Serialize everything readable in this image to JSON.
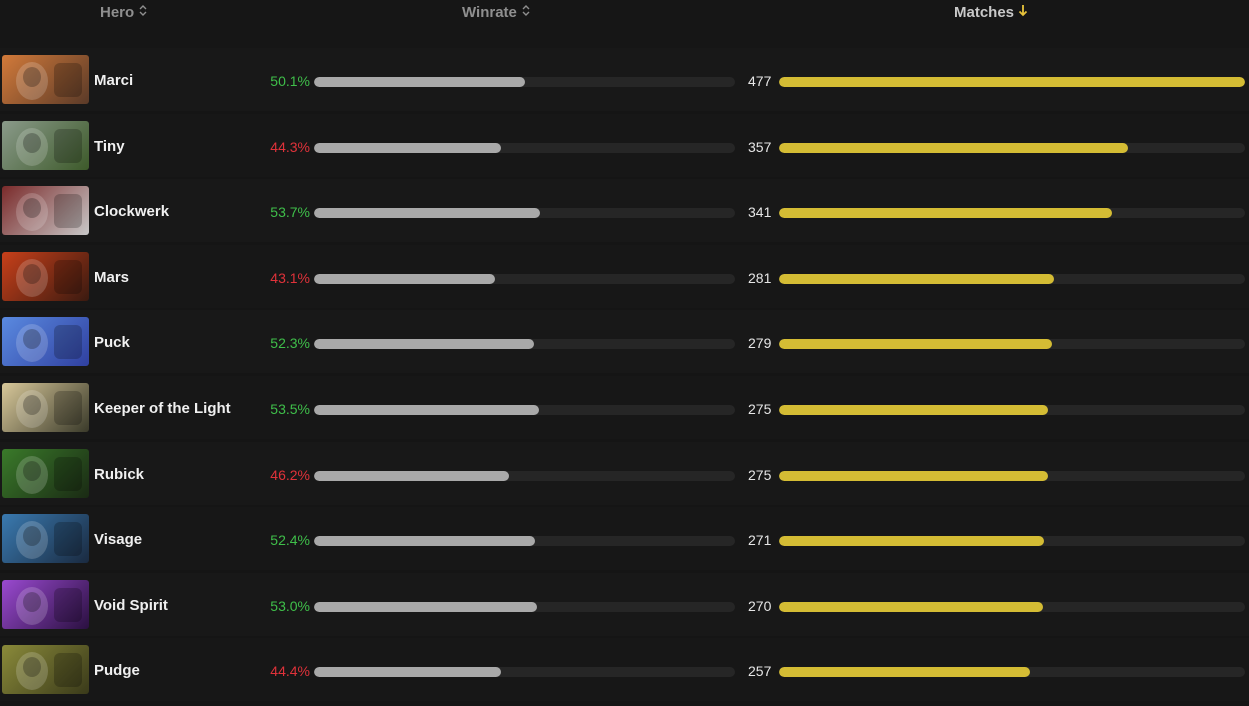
{
  "header": {
    "hero_label": "Hero",
    "winrate_label": "Winrate",
    "matches_label": "Matches",
    "hero_sort_icon": "sort-updown-icon",
    "winrate_sort_icon": "sort-updown-icon",
    "matches_sort_icon": "sort-desc-arrow-icon"
  },
  "colors": {
    "win_green": "#3fbf4a",
    "loss_red": "#e0323a",
    "winrate_bar": "#a9a9a9",
    "matches_bar": "#d4bc34"
  },
  "rows": [
    {
      "hero": "Marci",
      "winrate": "50.1%",
      "winrate_value": 50.1,
      "matches": "477",
      "matches_value": 477,
      "portrait_colors": [
        "#d27a3a",
        "#5a3a28"
      ]
    },
    {
      "hero": "Tiny",
      "winrate": "44.3%",
      "winrate_value": 44.3,
      "matches": "357",
      "matches_value": 357,
      "portrait_colors": [
        "#8a9a8a",
        "#3d5a2a"
      ]
    },
    {
      "hero": "Clockwerk",
      "winrate": "53.7%",
      "winrate_value": 53.7,
      "matches": "341",
      "matches_value": 341,
      "portrait_colors": [
        "#7a2a2a",
        "#c8c8c8"
      ]
    },
    {
      "hero": "Mars",
      "winrate": "43.1%",
      "winrate_value": 43.1,
      "matches": "281",
      "matches_value": 281,
      "portrait_colors": [
        "#c8401a",
        "#3a1a10"
      ]
    },
    {
      "hero": "Puck",
      "winrate": "52.3%",
      "winrate_value": 52.3,
      "matches": "279",
      "matches_value": 279,
      "portrait_colors": [
        "#5a8ae0",
        "#3040a0"
      ]
    },
    {
      "hero": "Keeper of the Light",
      "winrate": "53.5%",
      "winrate_value": 53.5,
      "matches": "275",
      "matches_value": 275,
      "portrait_colors": [
        "#d8c89a",
        "#3a3a2a"
      ]
    },
    {
      "hero": "Rubick",
      "winrate": "46.2%",
      "winrate_value": 46.2,
      "matches": "275",
      "matches_value": 275,
      "portrait_colors": [
        "#3a7a2a",
        "#1a2a14"
      ]
    },
    {
      "hero": "Visage",
      "winrate": "52.4%",
      "winrate_value": 52.4,
      "matches": "271",
      "matches_value": 271,
      "portrait_colors": [
        "#3a7ab0",
        "#1a2a40"
      ]
    },
    {
      "hero": "Void Spirit",
      "winrate": "53.0%",
      "winrate_value": 53.0,
      "matches": "270",
      "matches_value": 270,
      "portrait_colors": [
        "#9a4ad0",
        "#2a1040"
      ]
    },
    {
      "hero": "Pudge",
      "winrate": "44.4%",
      "winrate_value": 44.4,
      "matches": "257",
      "matches_value": 257,
      "portrait_colors": [
        "#8a8a3a",
        "#3a3a1a"
      ]
    }
  ]
}
